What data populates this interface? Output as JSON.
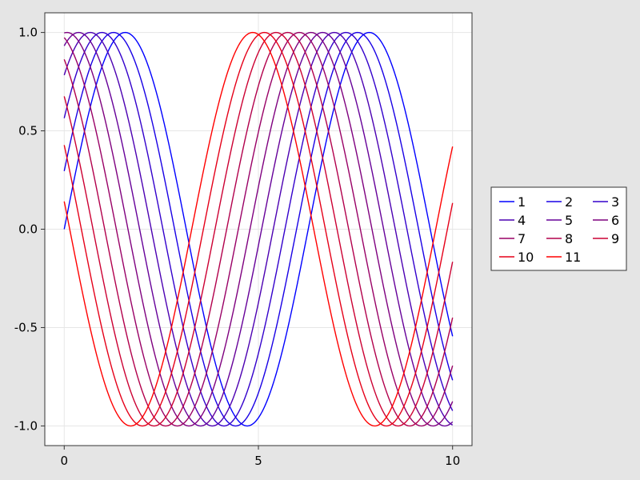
{
  "chart_data": {
    "type": "line",
    "function": "sin(x + phase)",
    "x_range": [
      0,
      10
    ],
    "xlim": [
      -0.5,
      10.5
    ],
    "ylim": [
      -1.1,
      1.1
    ],
    "x_ticks": [
      0,
      5,
      10
    ],
    "x_tick_labels": [
      "0",
      "5",
      "10"
    ],
    "y_ticks": [
      -1.0,
      -0.5,
      0.0,
      0.5,
      1.0
    ],
    "y_tick_labels": [
      "-1.0",
      "-0.5",
      "0.0",
      "0.5",
      "1.0"
    ],
    "grid": true,
    "legend_placement": "right",
    "legend_columns": 3,
    "series": [
      {
        "name": "1",
        "phase": 0.0,
        "color": "#0000ff"
      },
      {
        "name": "2",
        "phase": 0.3,
        "color": "#1900e5"
      },
      {
        "name": "3",
        "phase": 0.6,
        "color": "#3300cc"
      },
      {
        "name": "4",
        "phase": 0.9,
        "color": "#4c00b2"
      },
      {
        "name": "5",
        "phase": 1.2,
        "color": "#660099"
      },
      {
        "name": "6",
        "phase": 1.5,
        "color": "#7f007f"
      },
      {
        "name": "7",
        "phase": 1.8,
        "color": "#990066"
      },
      {
        "name": "8",
        "phase": 2.1,
        "color": "#b2004c"
      },
      {
        "name": "9",
        "phase": 2.4,
        "color": "#cc0033"
      },
      {
        "name": "10",
        "phase": 2.7,
        "color": "#e50019"
      },
      {
        "name": "11",
        "phase": 3.0,
        "color": "#ff0000"
      }
    ]
  }
}
